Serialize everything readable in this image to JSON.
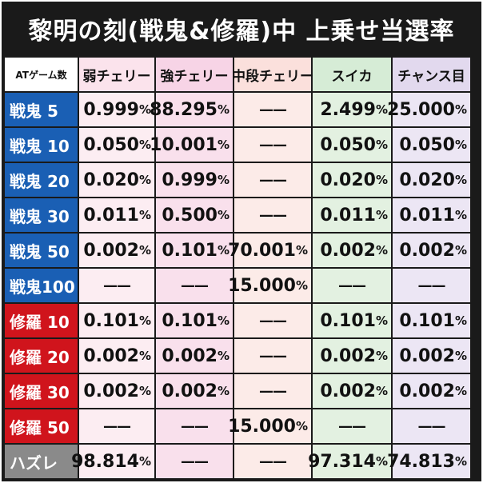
{
  "title": "黎明の刻(戦鬼&修羅)中 上乗せ当選率",
  "headers": [
    "ATゲーム数",
    "弱チェリー",
    "強チェリー",
    "中段チェリー",
    "スイカ",
    "チャンス目"
  ],
  "colors": {
    "title_bg": "#1a1a1a",
    "senki_label": "#1a5fb4",
    "shura_label": "#d0141c",
    "hazure_label": "#8a8a8a"
  },
  "rows": [
    {
      "label": "戦鬼 5",
      "type": "blue",
      "cells": [
        "0.999%",
        "88.295%",
        "——",
        "2.499%",
        "25.000%"
      ]
    },
    {
      "label": "戦鬼 10",
      "type": "blue",
      "cells": [
        "0.050%",
        "10.001%",
        "——",
        "0.050%",
        "0.050%"
      ]
    },
    {
      "label": "戦鬼 20",
      "type": "blue",
      "cells": [
        "0.020%",
        "0.999%",
        "——",
        "0.020%",
        "0.020%"
      ]
    },
    {
      "label": "戦鬼 30",
      "type": "blue",
      "cells": [
        "0.011%",
        "0.500%",
        "——",
        "0.011%",
        "0.011%"
      ]
    },
    {
      "label": "戦鬼 50",
      "type": "blue",
      "cells": [
        "0.002%",
        "0.101%",
        "70.001%",
        "0.002%",
        "0.002%"
      ]
    },
    {
      "label": "戦鬼100",
      "type": "blue",
      "cells": [
        "——",
        "——",
        "15.000%",
        "——",
        "——"
      ]
    },
    {
      "label": "修羅 10",
      "type": "red",
      "cells": [
        "0.101%",
        "0.101%",
        "——",
        "0.101%",
        "0.101%"
      ]
    },
    {
      "label": "修羅 20",
      "type": "red",
      "cells": [
        "0.002%",
        "0.002%",
        "——",
        "0.002%",
        "0.002%"
      ]
    },
    {
      "label": "修羅 30",
      "type": "red",
      "cells": [
        "0.002%",
        "0.002%",
        "——",
        "0.002%",
        "0.002%"
      ]
    },
    {
      "label": "修羅 50",
      "type": "red",
      "cells": [
        "——",
        "——",
        "15.000%",
        "——",
        "——"
      ]
    },
    {
      "label": "ハズレ",
      "type": "grey",
      "cells": [
        "98.814%",
        "——",
        "——",
        "97.314%",
        "74.813%"
      ]
    }
  ]
}
